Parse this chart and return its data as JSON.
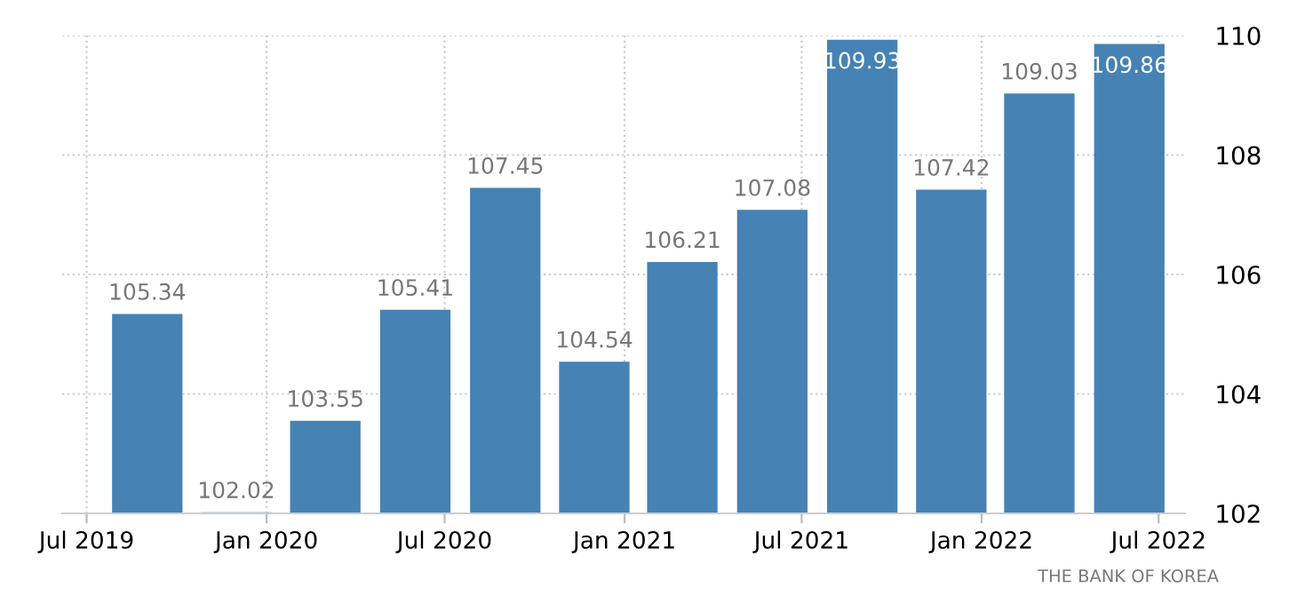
{
  "chart_data": {
    "type": "bar",
    "x": [
      "2019-09-01",
      "2019-12-01",
      "2020-03-01",
      "2020-06-01",
      "2020-09-01",
      "2020-12-01",
      "2021-03-01",
      "2021-06-01",
      "2021-09-01",
      "2021-12-01",
      "2022-03-01",
      "2022-06-01"
    ],
    "values": [
      105.34,
      102.02,
      103.55,
      105.41,
      107.45,
      104.54,
      106.21,
      107.08,
      109.93,
      107.42,
      109.03,
      109.86
    ],
    "color": "#4682b4",
    "data_labels": true,
    "xlim": [
      "2019-06-06",
      "2022-07-28"
    ],
    "xticks": [
      {
        "value": "2019-07-01",
        "label": "Jul 2019"
      },
      {
        "value": "2020-01-01",
        "label": "Jan 2020"
      },
      {
        "value": "2020-07-01",
        "label": "Jul 2020"
      },
      {
        "value": "2021-01-01",
        "label": "Jan 2021"
      },
      {
        "value": "2021-07-01",
        "label": "Jul 2021"
      },
      {
        "value": "2022-01-01",
        "label": "Jan 2022"
      },
      {
        "value": "2022-07-01",
        "label": "Jul 2022"
      }
    ],
    "ylim": [
      102,
      110
    ],
    "yticks": [
      102,
      104,
      106,
      108,
      110
    ],
    "grid": true,
    "legend": false,
    "annotations": [
      "THE BANK OF KOREA"
    ]
  }
}
